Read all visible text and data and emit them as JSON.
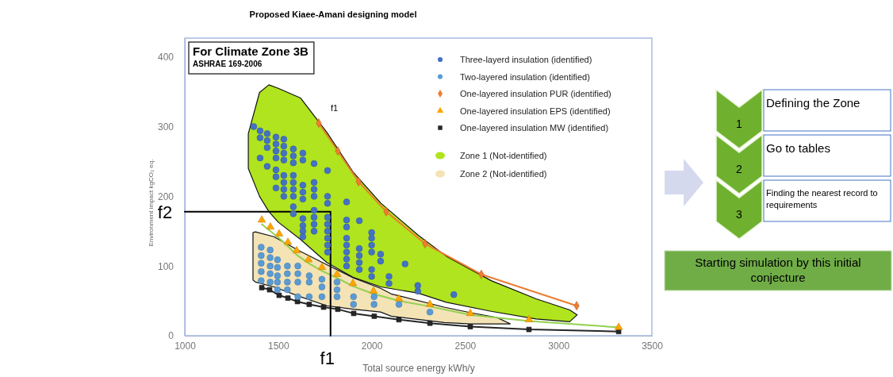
{
  "chart_data": [
    {
      "type": "scatter",
      "title": "Proposed Kiaee-Amani designing model",
      "xlabel": "Total source energy kWh/y",
      "ylabel": "Environment impact kgCO₂ eq.",
      "xlim": [
        1000,
        3500
      ],
      "ylim": [
        0,
        427
      ],
      "xticks": [
        1000,
        1500,
        2000,
        2500,
        3000,
        3500
      ],
      "yticks": [
        0,
        100,
        200,
        300,
        400
      ],
      "legend": "top right",
      "annotations": [
        "For Climate Zone 3B",
        "ASHRAE 169-2006",
        "f1",
        {
          "text": "f2",
          "x": 1000,
          "y": 178
        },
        {
          "text": "f1",
          "x": 1780,
          "y": 0
        }
      ],
      "series": [
        {
          "name": "Three-layerd insulation (identified)",
          "type": "scatter",
          "marker": "circle",
          "color": "#4472c4",
          "x": [
            1369,
            1403,
            1403,
            1403,
            1441,
            1441,
            1441,
            1441,
            1488,
            1488,
            1488,
            1488,
            1488,
            1488,
            1488,
            1530,
            1530,
            1530,
            1530,
            1530,
            1530,
            1530,
            1530,
            1581,
            1581,
            1581,
            1581,
            1581,
            1581,
            1581,
            1581,
            1581,
            1632,
            1632,
            1632,
            1632,
            1632,
            1632,
            1632,
            1632,
            1632,
            1692,
            1692,
            1692,
            1692,
            1692,
            1692,
            1692,
            1692,
            1764,
            1764,
            1764,
            1764,
            1764,
            1764,
            1764,
            1764,
            1764,
            1866,
            1866,
            1866,
            1866,
            1866,
            1866,
            1866,
            1866,
            1934,
            1934,
            1934,
            1934,
            1934,
            2000,
            2000,
            2000,
            2000,
            2000,
            2000,
            2048,
            2048,
            2093,
            2093,
            2179,
            2247,
            2247,
            2440
          ],
          "values": [
            300,
            294,
            284,
            255,
            290,
            280,
            270,
            243,
            285,
            275,
            265,
            255,
            238,
            228,
            212,
            282,
            272,
            262,
            252,
            230,
            220,
            210,
            200,
            268,
            258,
            248,
            230,
            220,
            210,
            200,
            185,
            175,
            262,
            252,
            216,
            206,
            196,
            168,
            158,
            150,
            142,
            247,
            220,
            210,
            200,
            180,
            170,
            160,
            150,
            237,
            200,
            190,
            170,
            160,
            150,
            140,
            130,
            120,
            192,
            166,
            156,
            140,
            130,
            120,
            110,
            100,
            165,
            125,
            115,
            105,
            95,
            148,
            140,
            130,
            120,
            95,
            85,
            117,
            107,
            85,
            75,
            103,
            72,
            64,
            59
          ]
        },
        {
          "name": "Two-layered insulation (identified)",
          "type": "scatter",
          "marker": "circle",
          "color": "#5b9bd5",
          "x": [
            1409,
            1409,
            1409,
            1409,
            1409,
            1457,
            1457,
            1457,
            1457,
            1457,
            1496,
            1496,
            1496,
            1496,
            1496,
            1549,
            1549,
            1549,
            1549,
            1605,
            1605,
            1605,
            1605,
            1666,
            1666,
            1666,
            1734,
            1734,
            1734,
            1815,
            1815,
            1815,
            1903,
            1903,
            2013,
            2013,
            2146,
            2312
          ],
          "values": [
            127,
            115,
            104,
            92,
            79,
            123,
            112,
            100,
            89,
            77,
            109,
            98,
            86,
            77,
            66,
            100,
            89,
            77,
            66,
            100,
            89,
            77,
            56,
            86,
            77,
            56,
            81,
            70,
            56,
            77,
            66,
            56,
            56,
            45,
            56,
            45,
            45,
            34
          ]
        },
        {
          "name": "One-layered insulation PUR (identified)",
          "type": "line",
          "marker": "diamond",
          "color": "#ed7d31",
          "x": [
            1717,
            1819,
            1930,
            2078,
            2286,
            2587,
            3097
          ],
          "values": [
            305,
            265,
            221,
            178,
            132,
            88,
            43
          ]
        },
        {
          "name": "One-layered insulation EPS (identified)",
          "type": "scatter",
          "marker": "triangle",
          "color": "#ffa500",
          "x": [
            1412,
            1458,
            1505,
            1552,
            1599,
            1662,
            1734,
            1815,
            1900,
            2010,
            2146,
            2312,
            2528,
            2842,
            3322
          ],
          "values": [
            166,
            156,
            146,
            134,
            122,
            109,
            98,
            88,
            75,
            64,
            53,
            45,
            32,
            23,
            12
          ]
        },
        {
          "name": "One-layered insulation MW (identified)",
          "type": "line",
          "marker": "square",
          "color": "#262626",
          "x": [
            1412,
            1454,
            1505,
            1552,
            1603,
            1666,
            1743,
            1819,
            1904,
            2014,
            2146,
            2312,
            2528,
            2842,
            3322
          ],
          "values": [
            69,
            66,
            58,
            54,
            49,
            45,
            41,
            38,
            32,
            28,
            23,
            18,
            13,
            9,
            6
          ]
        },
        {
          "name": "Zone 1 (Not-identified)",
          "type": "area",
          "color": "#b0e41e",
          "x": [
            1340,
            1400,
            1450,
            1500,
            1620,
            1760,
            1900,
            2050,
            2250,
            2400,
            2640,
            2880,
            3060,
            3100
          ],
          "values": [
            null,
            null,
            null,
            null,
            null,
            null,
            null,
            null,
            null,
            null,
            null,
            null,
            null,
            null
          ],
          "upper": [
            290,
            349,
            360,
            355,
            341,
            292,
            235,
            190,
            144,
            114,
            79,
            53,
            37,
            30
          ],
          "lower": [
            240,
            200,
            178,
            163,
            138,
            105,
            84,
            70,
            61,
            48,
            35,
            24,
            20,
            30
          ]
        },
        {
          "name": "Zone 2 (Not-identified)",
          "type": "area",
          "color": "#f3e3b5",
          "x": [
            1365,
            1378,
            1477,
            1619,
            1760,
            1903,
            2048,
            2105,
            2388,
            2530,
            2671,
            2742
          ],
          "values": [
            null,
            null,
            null,
            null,
            null,
            null,
            null,
            null,
            null,
            null,
            null,
            null
          ],
          "upper": [
            148,
            149,
            142,
            121,
            102,
            83,
            68,
            60,
            41,
            33,
            26,
            17
          ],
          "lower": [
            80,
            77,
            70,
            56,
            43,
            38,
            34,
            28,
            19,
            17,
            17,
            17
          ]
        },
        {
          "type": "line",
          "marker": "none",
          "color": "#92d050",
          "x": [
            1412,
            1458,
            1505,
            1552,
            1599,
            1662,
            1734,
            1815,
            1900,
            2010,
            2146,
            2312,
            2528,
            2842,
            3322
          ],
          "values": [
            160,
            150,
            140,
            128,
            116,
            104,
            93,
            83,
            71,
            60,
            50,
            42,
            30,
            21,
            12
          ]
        },
        {
          "type": "line",
          "marker": "none",
          "color": "#000000",
          "x": [
            1000,
            1780,
            1780
          ],
          "values": [
            178,
            178,
            0
          ]
        }
      ]
    },
    {
      "type": "other",
      "annotations": [
        "1",
        "Defining the Zone",
        "2",
        "Go to tables",
        "3",
        "Finding the nearest record to requirements",
        "Starting simulation by this initial conjecture"
      ]
    }
  ]
}
